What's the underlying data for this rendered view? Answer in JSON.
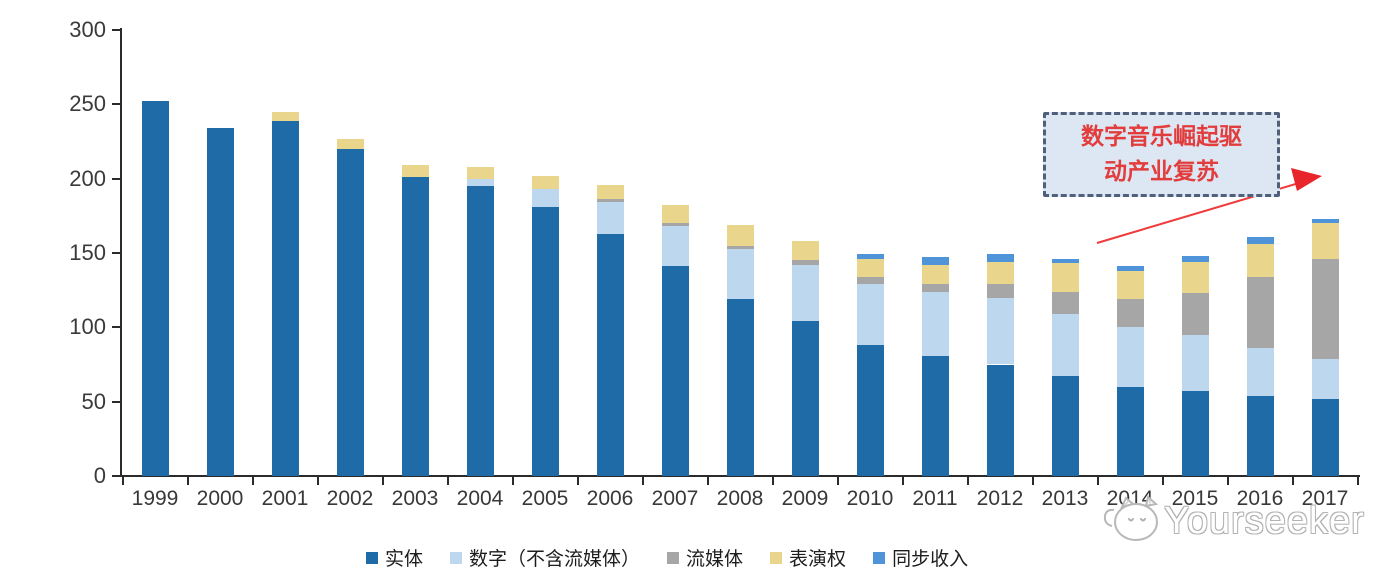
{
  "chart_data": {
    "type": "bar",
    "stacked": true,
    "title": "",
    "xlabel": "",
    "ylabel": "",
    "ylim": [
      0,
      300
    ],
    "yticks": [
      0,
      50,
      100,
      150,
      200,
      250,
      300
    ],
    "grid": false,
    "legend_position": "bottom",
    "categories": [
      "1999",
      "2000",
      "2001",
      "2002",
      "2003",
      "2004",
      "2005",
      "2006",
      "2007",
      "2008",
      "2009",
      "2010",
      "2011",
      "2012",
      "2013",
      "2014",
      "2015",
      "2016",
      "2017"
    ],
    "series": [
      {
        "name": "实体",
        "color": "#1f6ba8",
        "values": [
          252,
          234,
          239,
          220,
          201,
          195,
          181,
          163,
          141,
          119,
          104,
          88,
          81,
          75,
          67,
          60,
          57,
          54,
          52
        ]
      },
      {
        "name": "数字（不含流媒体）",
        "color": "#bdd7ee",
        "values": [
          0,
          0,
          0,
          0,
          0,
          5,
          12,
          21,
          27,
          34,
          38,
          41,
          43,
          45,
          42,
          40,
          38,
          32,
          27
        ]
      },
      {
        "name": "流媒体",
        "color": "#a6a6a6",
        "values": [
          0,
          0,
          0,
          0,
          0,
          0,
          0,
          2,
          2,
          2,
          3,
          5,
          5,
          9,
          15,
          19,
          28,
          48,
          67
        ]
      },
      {
        "name": "表演权",
        "color": "#e9d68c",
        "values": [
          0,
          0,
          6,
          7,
          8,
          8,
          9,
          10,
          12,
          14,
          13,
          12,
          13,
          15,
          19,
          19,
          21,
          22,
          24
        ]
      },
      {
        "name": "同步收入",
        "color": "#4f94d8",
        "values": [
          0,
          0,
          0,
          0,
          0,
          0,
          0,
          0,
          0,
          0,
          0,
          3,
          5,
          5,
          3,
          3,
          4,
          5,
          3
        ]
      }
    ],
    "totals": [
      252,
      234,
      245,
      227,
      209,
      208,
      202,
      196,
      182,
      169,
      158,
      149,
      147,
      149,
      146,
      141,
      148,
      161,
      173
    ]
  },
  "annotation": {
    "line1": "数字音乐崛起驱",
    "line2": "动产业复苏",
    "box_fill": "#dce7f3",
    "border_color": "#51607a",
    "text_color": "#e23c3c",
    "arrow_color": "#ef3b3b"
  },
  "watermark": {
    "text": "Yourseeker",
    "logo": "cat-face-logo"
  },
  "colors": {
    "axis": "#2b2b2b",
    "tick_label": "#3a3a3a",
    "background": "#ffffff"
  }
}
